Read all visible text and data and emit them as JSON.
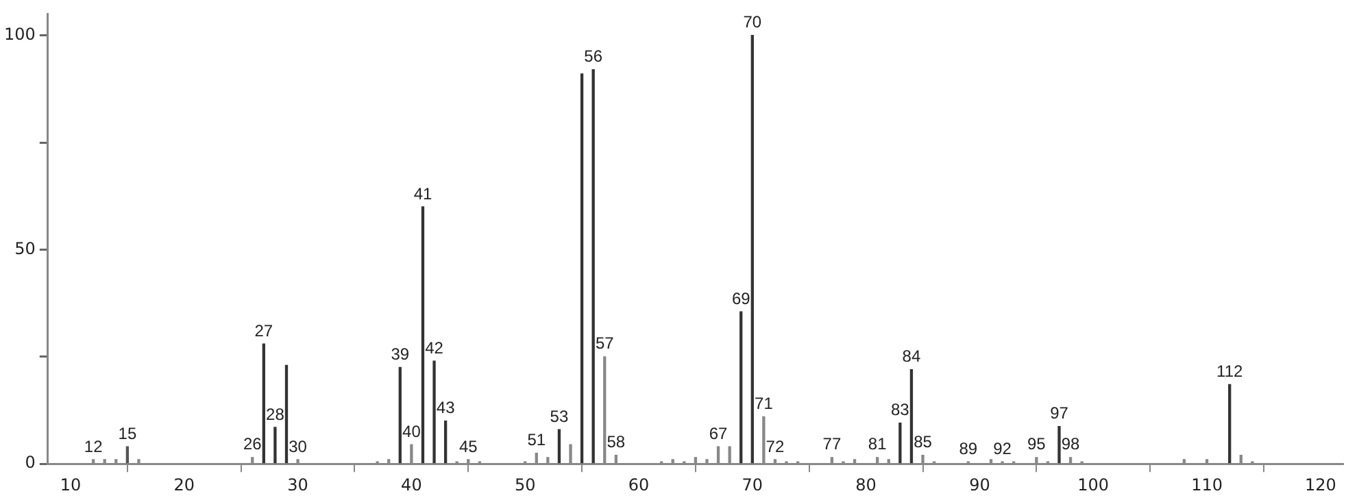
{
  "chart_data": {
    "type": "bar",
    "x": [
      12,
      13,
      14,
      15,
      16,
      26,
      27,
      28,
      29,
      30,
      37,
      38,
      39,
      40,
      41,
      42,
      43,
      44,
      45,
      46,
      50,
      51,
      52,
      53,
      54,
      55,
      56,
      57,
      58,
      62,
      63,
      64,
      65,
      66,
      67,
      68,
      69,
      70,
      71,
      72,
      73,
      74,
      77,
      78,
      79,
      81,
      82,
      83,
      84,
      85,
      86,
      89,
      91,
      92,
      93,
      95,
      96,
      97,
      98,
      99,
      108,
      110,
      112,
      113,
      114
    ],
    "values": [
      1,
      1,
      1,
      4,
      1,
      1.5,
      28,
      8.5,
      23,
      1,
      0.5,
      1,
      22.5,
      4.5,
      60,
      24,
      10,
      0.5,
      1,
      0.5,
      0.5,
      2.5,
      1.5,
      8,
      4.5,
      91,
      92,
      25,
      2,
      0.5,
      1,
      0.5,
      1.5,
      1,
      4,
      4,
      35.5,
      100,
      11,
      1,
      0.5,
      0.5,
      1.5,
      0.5,
      1,
      1.5,
      1,
      9.5,
      22,
      2,
      0.5,
      0.5,
      1,
      0.5,
      0.5,
      1.5,
      0.5,
      8.7,
      1.5,
      0.5,
      1,
      1,
      18.5,
      2,
      0.5
    ],
    "colors": [
      "#888888",
      "#888888",
      "#888888",
      "#555555",
      "#888888",
      "#888888",
      "#333333",
      "#333333",
      "#333333",
      "#888888",
      "#888888",
      "#888888",
      "#333333",
      "#888888",
      "#333333",
      "#333333",
      "#333333",
      "#888888",
      "#888888",
      "#888888",
      "#888888",
      "#888888",
      "#888888",
      "#333333",
      "#888888",
      "#333333",
      "#333333",
      "#888888",
      "#888888",
      "#888888",
      "#888888",
      "#888888",
      "#888888",
      "#888888",
      "#888888",
      "#888888",
      "#333333",
      "#333333",
      "#888888",
      "#888888",
      "#888888",
      "#888888",
      "#888888",
      "#888888",
      "#888888",
      "#888888",
      "#888888",
      "#333333",
      "#333333",
      "#888888",
      "#888888",
      "#888888",
      "#888888",
      "#888888",
      "#888888",
      "#888888",
      "#888888",
      "#333333",
      "#888888",
      "#888888",
      "#888888",
      "#888888",
      "#333333",
      "#888888",
      "#888888"
    ],
    "annotations": [
      {
        "text": "12",
        "x": 12,
        "y": 1
      },
      {
        "text": "15",
        "x": 15,
        "y": 4
      },
      {
        "text": "26",
        "x": 26,
        "y": 1.5
      },
      {
        "text": "27",
        "x": 27,
        "y": 28
      },
      {
        "text": "28",
        "x": 28,
        "y": 8.5
      },
      {
        "text": "30",
        "x": 30,
        "y": 1
      },
      {
        "text": "39",
        "x": 39,
        "y": 22.5
      },
      {
        "text": "40",
        "x": 40,
        "y": 4.5
      },
      {
        "text": "41",
        "x": 41,
        "y": 60
      },
      {
        "text": "42",
        "x": 42,
        "y": 24
      },
      {
        "text": "43",
        "x": 43,
        "y": 10
      },
      {
        "text": "45",
        "x": 45,
        "y": 1
      },
      {
        "text": "51",
        "x": 51,
        "y": 2.5
      },
      {
        "text": "53",
        "x": 53,
        "y": 8
      },
      {
        "text": "56",
        "x": 56,
        "y": 92
      },
      {
        "text": "57",
        "x": 57,
        "y": 25
      },
      {
        "text": "58",
        "x": 58,
        "y": 2
      },
      {
        "text": "67",
        "x": 67,
        "y": 4
      },
      {
        "text": "69",
        "x": 69,
        "y": 35.5
      },
      {
        "text": "70",
        "x": 70,
        "y": 100
      },
      {
        "text": "71",
        "x": 71,
        "y": 11
      },
      {
        "text": "72",
        "x": 72,
        "y": 1
      },
      {
        "text": "77",
        "x": 77,
        "y": 1.5
      },
      {
        "text": "81",
        "x": 81,
        "y": 1.5
      },
      {
        "text": "83",
        "x": 83,
        "y": 9.5
      },
      {
        "text": "84",
        "x": 84,
        "y": 22
      },
      {
        "text": "85",
        "x": 85,
        "y": 2
      },
      {
        "text": "89",
        "x": 89,
        "y": 0.5
      },
      {
        "text": "92",
        "x": 92,
        "y": 0.5
      },
      {
        "text": "95",
        "x": 95,
        "y": 1.5
      },
      {
        "text": "97",
        "x": 97,
        "y": 8.7
      },
      {
        "text": "98",
        "x": 98,
        "y": 1.5
      },
      {
        "text": "112",
        "x": 112,
        "y": 18.5
      }
    ],
    "xlim": [
      8,
      122
    ],
    "xticks": [
      10,
      20,
      30,
      40,
      50,
      60,
      70,
      80,
      90,
      100,
      110,
      120
    ],
    "ylim": [
      0,
      105
    ],
    "yticks": [
      0,
      {
        "value": 25,
        "label": null
      },
      50,
      {
        "value": 75,
        "label": null
      },
      100
    ],
    "grid": false,
    "legend": false
  }
}
